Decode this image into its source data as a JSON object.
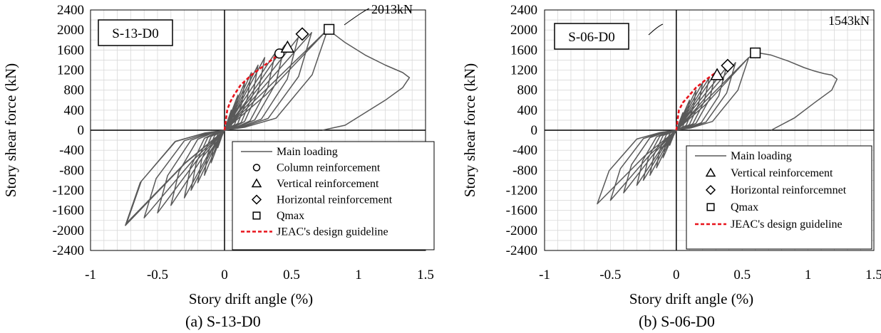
{
  "chart_data": [
    {
      "type": "line",
      "panel_label": "S-13-D0",
      "caption": "(a) S-13-D0",
      "xlabel": "Story drift angle (%)",
      "ylabel": "Story shear force (kN)",
      "xlim": [
        -1,
        1.5
      ],
      "ylim": [
        -2400,
        2400
      ],
      "x_ticks": [
        -1,
        -0.5,
        0,
        0.5,
        1,
        1.5
      ],
      "x_tick_labels": [
        "-1",
        "-0.5",
        "0",
        "0.5",
        "1",
        "1.5"
      ],
      "y_ticks": [
        -2400,
        -2000,
        -1600,
        -1200,
        -800,
        -400,
        0,
        400,
        800,
        1200,
        1600,
        2000,
        2400
      ],
      "y_tick_labels": [
        "-2400",
        "-2000",
        "-1600",
        "-1200",
        "-800",
        "-400",
        "0",
        "400",
        "800",
        "1200",
        "1600",
        "2000",
        "2400"
      ],
      "grid": true,
      "legend_position": "bottom-right",
      "annotation": "2013kN",
      "legend": [
        {
          "label": "Main loading",
          "marker": "line",
          "color": "#595959"
        },
        {
          "label": "Column reinforcement",
          "marker": "circle"
        },
        {
          "label": "Vertical reinforcement",
          "marker": "triangle"
        },
        {
          "label": "Horizontal reinforcement",
          "marker": "diamond"
        },
        {
          "label": "Qmax",
          "marker": "square"
        },
        {
          "label": "JEAC's design  guideline",
          "marker": "dashed",
          "color": "#e8141c"
        }
      ],
      "main_loading_peaks": [
        {
          "pos": [
            0.05,
            400
          ],
          "neg": [
            -0.05,
            -350
          ]
        },
        {
          "pos": [
            0.1,
            700
          ],
          "neg": [
            -0.1,
            -650
          ]
        },
        {
          "pos": [
            0.15,
            950
          ],
          "neg": [
            -0.15,
            -900
          ]
        },
        {
          "pos": [
            0.2,
            1150
          ],
          "neg": [
            -0.2,
            -1050
          ]
        },
        {
          "pos": [
            0.25,
            1300
          ],
          "neg": [
            -0.25,
            -1200
          ]
        },
        {
          "pos": [
            0.3,
            1450
          ],
          "neg": [
            -0.3,
            -1350
          ]
        },
        {
          "pos": [
            0.38,
            1550
          ],
          "neg": [
            -0.4,
            -1500
          ]
        },
        {
          "pos": [
            0.45,
            1700
          ],
          "neg": [
            -0.5,
            -1650
          ]
        },
        {
          "pos": [
            0.55,
            1850
          ],
          "neg": [
            -0.6,
            -1750
          ]
        },
        {
          "pos": [
            0.65,
            1950
          ],
          "neg": [
            -0.73,
            -1850
          ]
        },
        {
          "pos": [
            0.77,
            2013
          ],
          "neg": [
            -0.74,
            -1900
          ]
        }
      ],
      "post_peak": [
        [
          0.77,
          2013
        ],
        [
          0.9,
          1750
        ],
        [
          1.05,
          1500
        ],
        [
          1.2,
          1300
        ],
        [
          1.33,
          1150
        ],
        [
          1.38,
          1050
        ],
        [
          1.33,
          850
        ],
        [
          1.2,
          600
        ],
        [
          1.05,
          350
        ],
        [
          0.9,
          100
        ],
        [
          0.73,
          0
        ]
      ],
      "jeac_guideline": [
        [
          0,
          0
        ],
        [
          0.01,
          200
        ],
        [
          0.02,
          400
        ],
        [
          0.04,
          550
        ],
        [
          0.07,
          700
        ],
        [
          0.12,
          900
        ],
        [
          0.2,
          1100
        ],
        [
          0.3,
          1300
        ],
        [
          0.4,
          1500
        ]
      ],
      "events": [
        {
          "label": "Column reinforcement",
          "marker": "circle",
          "x": 0.41,
          "y": 1530
        },
        {
          "label": "Vertical reinforcement",
          "marker": "triangle",
          "x": 0.47,
          "y": 1650
        },
        {
          "label": "Horizontal reinforcement",
          "marker": "diamond",
          "x": 0.58,
          "y": 1920
        },
        {
          "label": "Qmax",
          "marker": "square",
          "x": 0.78,
          "y": 2013
        }
      ]
    },
    {
      "type": "line",
      "panel_label": "S-06-D0",
      "caption": "(b) S-06-D0",
      "xlabel": "Story drift angle (%)",
      "ylabel": "Story shear force (kN)",
      "xlim": [
        -1,
        1.5
      ],
      "ylim": [
        -2400,
        2400
      ],
      "x_ticks": [
        -1,
        -0.5,
        0,
        0.5,
        1,
        1.5
      ],
      "x_tick_labels": [
        "-1",
        "-0.5",
        "0",
        "0.5",
        "1",
        "1.5"
      ],
      "y_ticks": [
        -2400,
        -2000,
        -1600,
        -1200,
        -800,
        -400,
        0,
        400,
        800,
        1200,
        1600,
        2000,
        2400
      ],
      "y_tick_labels": [
        "-2400",
        "-2000",
        "-1600",
        "-1200",
        "-800",
        "-400",
        "0",
        "400",
        "800",
        "1200",
        "1600",
        "2000",
        "2400"
      ],
      "grid": true,
      "legend_position": "bottom-right",
      "annotation": "1543kN",
      "legend": [
        {
          "label": "Main loading",
          "marker": "line",
          "color": "#595959"
        },
        {
          "label": "Vertical reinforcement",
          "marker": "triangle"
        },
        {
          "label": "Horizontal reinforcemnet",
          "marker": "diamond"
        },
        {
          "label": "Qmax",
          "marker": "square"
        },
        {
          "label": "JEAC's design guideline",
          "marker": "dashed",
          "color": "#e8141c"
        }
      ],
      "main_loading_peaks": [
        {
          "pos": [
            0.05,
            350
          ],
          "neg": [
            -0.05,
            -300
          ]
        },
        {
          "pos": [
            0.1,
            600
          ],
          "neg": [
            -0.1,
            -550
          ]
        },
        {
          "pos": [
            0.15,
            800
          ],
          "neg": [
            -0.15,
            -750
          ]
        },
        {
          "pos": [
            0.2,
            950
          ],
          "neg": [
            -0.2,
            -900
          ]
        },
        {
          "pos": [
            0.25,
            1050
          ],
          "neg": [
            -0.25,
            -1000
          ]
        },
        {
          "pos": [
            0.3,
            1150
          ],
          "neg": [
            -0.3,
            -1100
          ]
        },
        {
          "pos": [
            0.38,
            1250
          ],
          "neg": [
            -0.4,
            -1250
          ]
        },
        {
          "pos": [
            0.45,
            1350
          ],
          "neg": [
            -0.5,
            -1400
          ]
        },
        {
          "pos": [
            0.55,
            1450
          ],
          "neg": [
            -0.6,
            -1470
          ]
        }
      ],
      "post_peak": [
        [
          0.55,
          1450
        ],
        [
          0.62,
          1543
        ],
        [
          0.72,
          1500
        ],
        [
          0.85,
          1380
        ],
        [
          0.97,
          1250
        ],
        [
          1.05,
          1180
        ],
        [
          1.12,
          1130
        ],
        [
          1.18,
          1100
        ],
        [
          1.22,
          1020
        ],
        [
          1.18,
          800
        ],
        [
          1.05,
          550
        ],
        [
          0.9,
          250
        ],
        [
          0.72,
          0
        ]
      ],
      "jeac_guideline": [
        [
          0,
          0
        ],
        [
          0.01,
          200
        ],
        [
          0.02,
          400
        ],
        [
          0.05,
          550
        ],
        [
          0.1,
          700
        ],
        [
          0.15,
          850
        ],
        [
          0.22,
          1000
        ],
        [
          0.3,
          1150
        ]
      ],
      "events": [
        {
          "label": "Vertical reinforcement",
          "marker": "triangle",
          "x": 0.31,
          "y": 1100
        },
        {
          "label": "Horizontal reinforcemnet",
          "marker": "diamond",
          "x": 0.39,
          "y": 1290
        },
        {
          "label": "Qmax",
          "marker": "square",
          "x": 0.6,
          "y": 1543
        }
      ]
    }
  ]
}
